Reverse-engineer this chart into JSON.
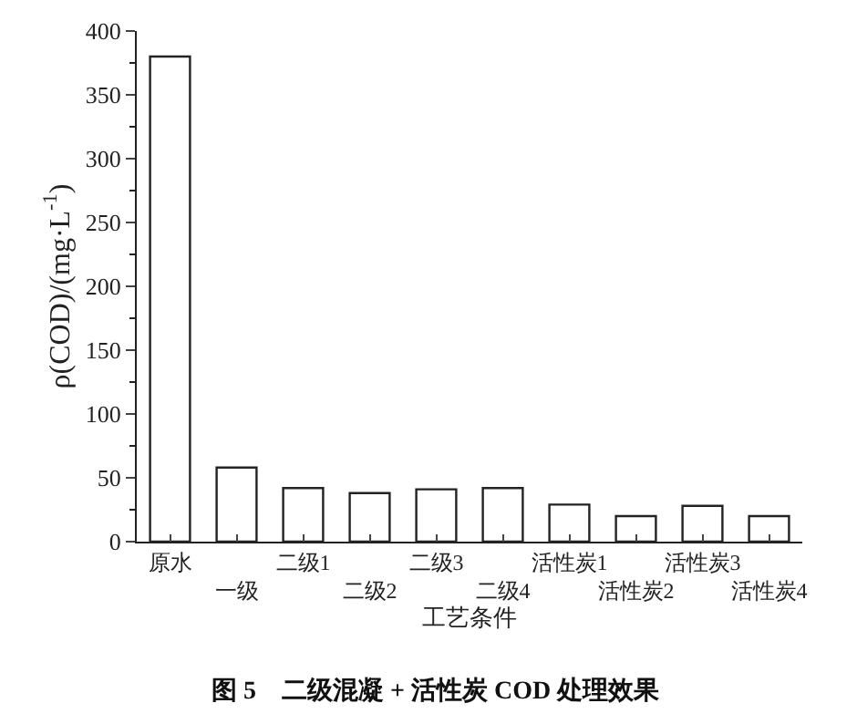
{
  "chart_data": {
    "type": "bar",
    "categories": [
      "原水",
      "一级",
      "二级1",
      "二级2",
      "二级3",
      "二级4",
      "活性炭1",
      "活性炭2",
      "活性炭3",
      "活性炭4"
    ],
    "values": [
      380,
      58,
      42,
      38,
      41,
      42,
      29,
      20,
      28,
      20
    ],
    "color": "#ffffff",
    "xlabel": "工艺条件",
    "ylabel": "ρ(COD)/(mg·L$^{-1}$)",
    "ylim": [
      0,
      400
    ],
    "yticks": [
      0,
      50,
      100,
      150,
      200,
      250,
      300,
      350,
      400
    ],
    "legend": false,
    "annotations": [
      "图 5　二级混凝 + 活性炭 COD 处理效果"
    ]
  }
}
